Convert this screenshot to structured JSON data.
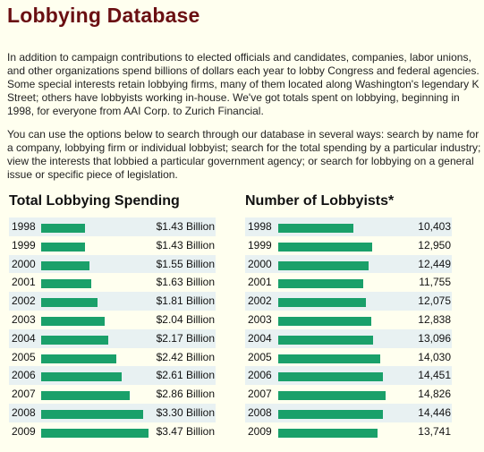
{
  "page": {
    "title": "Lobbying Database",
    "intro": "In addition to campaign contributions to elected officials and candidates, companies, labor unions, and other organizations spend billions of dollars each year to lobby Congress and federal agencies. Some special interests retain lobbying firms, many of them located along Washington's legendary K Street; others have lobbyists working in-house. We've got totals spent on lobbying, beginning in 1998, for everyone from AAI Corp. to Zurich Financial.",
    "instructions": "You can use the options below to search through our database in several ways: search by name for a company, lobbying firm or individual lobbyist; search for the total spending by a particular industry; view the interests that lobbied a particular government agency; or search for lobbying on a general issue or specific piece of legislation."
  },
  "colors": {
    "title": "#6a0f12",
    "bar": "#1aa06a",
    "row_alt": "#e8f1f2",
    "background": "#ffffef"
  },
  "chart_data": [
    {
      "type": "bar",
      "orientation": "horizontal",
      "title": "Total Lobbying Spending",
      "categories": [
        "1998",
        "1999",
        "2000",
        "2001",
        "2002",
        "2003",
        "2004",
        "2005",
        "2006",
        "2007",
        "2008",
        "2009"
      ],
      "values": [
        1.43,
        1.43,
        1.55,
        1.63,
        1.81,
        2.04,
        2.17,
        2.42,
        2.61,
        2.86,
        3.3,
        3.47
      ],
      "labels": [
        "$1.43 Billion",
        "$1.43 Billion",
        "$1.55 Billion",
        "$1.63 Billion",
        "$1.81 Billion",
        "$2.04 Billion",
        "$2.17 Billion",
        "$2.42 Billion",
        "$2.61 Billion",
        "$2.86 Billion",
        "$3.30 Billion",
        "$3.47 Billion"
      ],
      "xlim": [
        0,
        3.47
      ]
    },
    {
      "type": "bar",
      "orientation": "horizontal",
      "title": "Number of Lobbyists*",
      "categories": [
        "1998",
        "1999",
        "2000",
        "2001",
        "2002",
        "2003",
        "2004",
        "2005",
        "2006",
        "2007",
        "2008",
        "2009"
      ],
      "values": [
        10403,
        12950,
        12449,
        11755,
        12075,
        12838,
        13096,
        14030,
        14451,
        14826,
        14446,
        13741
      ],
      "labels": [
        "10,403",
        "12,950",
        "12,449",
        "11,755",
        "12,075",
        "12,838",
        "13,096",
        "14,030",
        "14,451",
        "14,826",
        "14,446",
        "13,741"
      ],
      "xlim": [
        0,
        14826
      ]
    }
  ]
}
